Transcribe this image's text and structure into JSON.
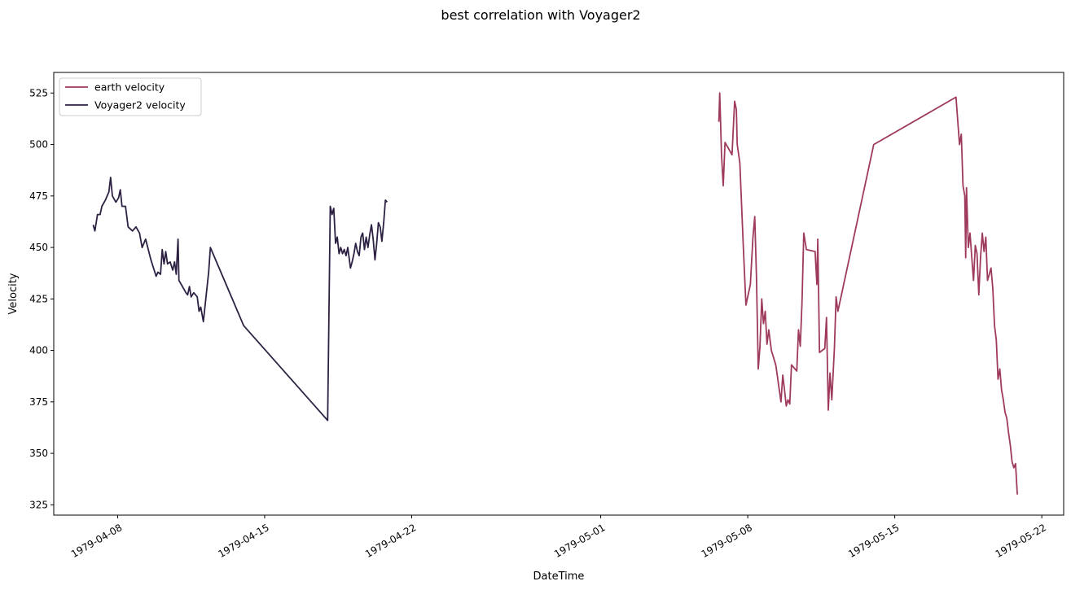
{
  "chart_data": {
    "type": "line",
    "title": "best correlation with Voyager2",
    "xlabel": "DateTime",
    "ylabel": "Velocity",
    "x_ticks": [
      "1979-04-08",
      "1979-04-15",
      "1979-04-22",
      "1979-05-01",
      "1979-05-08",
      "1979-05-15",
      "1979-05-22"
    ],
    "y_ticks": [
      325,
      350,
      375,
      400,
      425,
      450,
      475,
      500,
      525
    ],
    "xlim": [
      "1979-04-04T23:00",
      "1979-05-23T01:00"
    ],
    "ylim": [
      320,
      535
    ],
    "grid": false,
    "legend_position": "top-left",
    "series": [
      {
        "name": "earth velocity",
        "color": "#9e3a5c",
        "points": [
          [
            "1979-05-06T15:00",
            511
          ],
          [
            "1979-05-06T16:00",
            525
          ],
          [
            "1979-05-06T18:00",
            495
          ],
          [
            "1979-05-06T20:00",
            480
          ],
          [
            "1979-05-06T22:00",
            501
          ],
          [
            "1979-05-07T02:00",
            498
          ],
          [
            "1979-05-07T06:00",
            495
          ],
          [
            "1979-05-07T09:00",
            521
          ],
          [
            "1979-05-07T11:00",
            517
          ],
          [
            "1979-05-07T12:00",
            500
          ],
          [
            "1979-05-07T15:00",
            491
          ],
          [
            "1979-05-07T19:00",
            450
          ],
          [
            "1979-05-07T22:00",
            422
          ],
          [
            "1979-05-08T03:00",
            432
          ],
          [
            "1979-05-08T06:00",
            455
          ],
          [
            "1979-05-08T08:00",
            465
          ],
          [
            "1979-05-08T10:00",
            436
          ],
          [
            "1979-05-08T12:00",
            391
          ],
          [
            "1979-05-08T14:00",
            402
          ],
          [
            "1979-05-08T16:00",
            425
          ],
          [
            "1979-05-08T18:00",
            413
          ],
          [
            "1979-05-08T20:00",
            419
          ],
          [
            "1979-05-08T22:00",
            403
          ],
          [
            "1979-05-09T00:00",
            410
          ],
          [
            "1979-05-09T03:00",
            400
          ],
          [
            "1979-05-09T08:00",
            393
          ],
          [
            "1979-05-09T14:00",
            375
          ],
          [
            "1979-05-09T16:00",
            388
          ],
          [
            "1979-05-09T18:00",
            381
          ],
          [
            "1979-05-09T20:00",
            373
          ],
          [
            "1979-05-09T22:00",
            376
          ],
          [
            "1979-05-10T00:00",
            374
          ],
          [
            "1979-05-10T02:00",
            393
          ],
          [
            "1979-05-10T08:00",
            390
          ],
          [
            "1979-05-10T10:00",
            410
          ],
          [
            "1979-05-10T12:00",
            402
          ],
          [
            "1979-05-10T14:00",
            423
          ],
          [
            "1979-05-10T16:00",
            457
          ],
          [
            "1979-05-10T19:00",
            449
          ],
          [
            "1979-05-11T05:00",
            448
          ],
          [
            "1979-05-11T07:00",
            432
          ],
          [
            "1979-05-11T08:00",
            454
          ],
          [
            "1979-05-11T10:00",
            399
          ],
          [
            "1979-05-11T16:00",
            401
          ],
          [
            "1979-05-11T18:00",
            416
          ],
          [
            "1979-05-11T20:00",
            371
          ],
          [
            "1979-05-11T22:00",
            389
          ],
          [
            "1979-05-12T00:00",
            376
          ],
          [
            "1979-05-12T03:00",
            401
          ],
          [
            "1979-05-12T05:00",
            426
          ],
          [
            "1979-05-12T07:00",
            419
          ],
          [
            "1979-05-14T00:00",
            500
          ],
          [
            "1979-05-17T22:00",
            523
          ],
          [
            "1979-05-18T02:00",
            500
          ],
          [
            "1979-05-18T04:00",
            505
          ],
          [
            "1979-05-18T06:00",
            480
          ],
          [
            "1979-05-18T08:00",
            475
          ],
          [
            "1979-05-18T09:00",
            445
          ],
          [
            "1979-05-18T10:00",
            479
          ],
          [
            "1979-05-18T12:00",
            450
          ],
          [
            "1979-05-18T14:00",
            457
          ],
          [
            "1979-05-18T16:00",
            445
          ],
          [
            "1979-05-18T18:00",
            434
          ],
          [
            "1979-05-18T20:00",
            451
          ],
          [
            "1979-05-18T22:00",
            447
          ],
          [
            "1979-05-19T00:00",
            427
          ],
          [
            "1979-05-19T02:00",
            445
          ],
          [
            "1979-05-19T04:00",
            457
          ],
          [
            "1979-05-19T06:00",
            448
          ],
          [
            "1979-05-19T08:00",
            455
          ],
          [
            "1979-05-19T10:00",
            434
          ],
          [
            "1979-05-19T12:00",
            437
          ],
          [
            "1979-05-19T14:00",
            440
          ],
          [
            "1979-05-19T16:00",
            430
          ],
          [
            "1979-05-19T18:00",
            412
          ],
          [
            "1979-05-19T20:00",
            405
          ],
          [
            "1979-05-19T22:00",
            386
          ],
          [
            "1979-05-20T00:00",
            391
          ],
          [
            "1979-05-20T02:00",
            381
          ],
          [
            "1979-05-20T04:00",
            376
          ],
          [
            "1979-05-20T06:00",
            370
          ],
          [
            "1979-05-20T08:00",
            367
          ],
          [
            "1979-05-20T10:00",
            360
          ],
          [
            "1979-05-20T12:00",
            354
          ],
          [
            "1979-05-20T14:00",
            346
          ],
          [
            "1979-05-20T16:00",
            343
          ],
          [
            "1979-05-20T18:00",
            345
          ],
          [
            "1979-05-20T20:00",
            330
          ]
        ]
      },
      {
        "name": "Voyager2 velocity",
        "color": "#2d2143",
        "points": [
          [
            "1979-04-06T20:00",
            461
          ],
          [
            "1979-04-06T22:00",
            458
          ],
          [
            "1979-04-07T01:00",
            466
          ],
          [
            "1979-04-07T04:00",
            466
          ],
          [
            "1979-04-07T06:00",
            470
          ],
          [
            "1979-04-07T10:00",
            473
          ],
          [
            "1979-04-07T14:00",
            477
          ],
          [
            "1979-04-07T16:00",
            484
          ],
          [
            "1979-04-07T18:00",
            475
          ],
          [
            "1979-04-07T22:00",
            472
          ],
          [
            "1979-04-08T01:00",
            474
          ],
          [
            "1979-04-08T03:00",
            478
          ],
          [
            "1979-04-08T05:00",
            470
          ],
          [
            "1979-04-08T09:00",
            470
          ],
          [
            "1979-04-08T12:00",
            460
          ],
          [
            "1979-04-08T17:00",
            458
          ],
          [
            "1979-04-08T21:00",
            460
          ],
          [
            "1979-04-09T01:00",
            457
          ],
          [
            "1979-04-09T04:00",
            450
          ],
          [
            "1979-04-09T08:00",
            454
          ],
          [
            "1979-04-09T14:00",
            444
          ],
          [
            "1979-04-09T20:00",
            436
          ],
          [
            "1979-04-09T22:00",
            438
          ],
          [
            "1979-04-10T01:00",
            437
          ],
          [
            "1979-04-10T03:00",
            449
          ],
          [
            "1979-04-10T05:00",
            442
          ],
          [
            "1979-04-10T07:00",
            448
          ],
          [
            "1979-04-10T09:00",
            442
          ],
          [
            "1979-04-10T12:00",
            443
          ],
          [
            "1979-04-10T15:00",
            439
          ],
          [
            "1979-04-10T17:00",
            443
          ],
          [
            "1979-04-10T19:00",
            437
          ],
          [
            "1979-04-10T21:00",
            454
          ],
          [
            "1979-04-10T22:00",
            434
          ],
          [
            "1979-04-11T06:00",
            428
          ],
          [
            "1979-04-11T08:00",
            427
          ],
          [
            "1979-04-11T10:00",
            431
          ],
          [
            "1979-04-11T12:00",
            426
          ],
          [
            "1979-04-11T15:00",
            428
          ],
          [
            "1979-04-11T19:00",
            426
          ],
          [
            "1979-04-11T21:00",
            419
          ],
          [
            "1979-04-11T23:00",
            421
          ],
          [
            "1979-04-12T02:00",
            414
          ],
          [
            "1979-04-12T08:00",
            438
          ],
          [
            "1979-04-12T10:00",
            450
          ],
          [
            "1979-04-14T00:00",
            412
          ],
          [
            "1979-04-18T00:00",
            366
          ],
          [
            "1979-04-18T03:00",
            470
          ],
          [
            "1979-04-18T05:00",
            466
          ],
          [
            "1979-04-18T07:00",
            469
          ],
          [
            "1979-04-18T09:00",
            452
          ],
          [
            "1979-04-18T11:00",
            455
          ],
          [
            "1979-04-18T13:00",
            447
          ],
          [
            "1979-04-18T15:00",
            450
          ],
          [
            "1979-04-18T17:00",
            447
          ],
          [
            "1979-04-18T19:00",
            449
          ],
          [
            "1979-04-18T21:00",
            446
          ],
          [
            "1979-04-18T23:00",
            450
          ],
          [
            "1979-04-19T02:00",
            440
          ],
          [
            "1979-04-19T04:00",
            443
          ],
          [
            "1979-04-19T06:00",
            447
          ],
          [
            "1979-04-19T08:00",
            452
          ],
          [
            "1979-04-19T10:00",
            448
          ],
          [
            "1979-04-19T12:00",
            446
          ],
          [
            "1979-04-19T14:00",
            455
          ],
          [
            "1979-04-19T16:00",
            457
          ],
          [
            "1979-04-19T18:00",
            449
          ],
          [
            "1979-04-19T20:00",
            455
          ],
          [
            "1979-04-19T22:00",
            450
          ],
          [
            "1979-04-20T00:00",
            456
          ],
          [
            "1979-04-20T02:00",
            461
          ],
          [
            "1979-04-20T04:00",
            454
          ],
          [
            "1979-04-20T06:00",
            444
          ],
          [
            "1979-04-20T08:00",
            452
          ],
          [
            "1979-04-20T10:00",
            462
          ],
          [
            "1979-04-20T12:00",
            460
          ],
          [
            "1979-04-20T14:00",
            453
          ],
          [
            "1979-04-20T16:00",
            462
          ],
          [
            "1979-04-20T18:00",
            473
          ],
          [
            "1979-04-20T20:00",
            472
          ]
        ]
      }
    ]
  }
}
